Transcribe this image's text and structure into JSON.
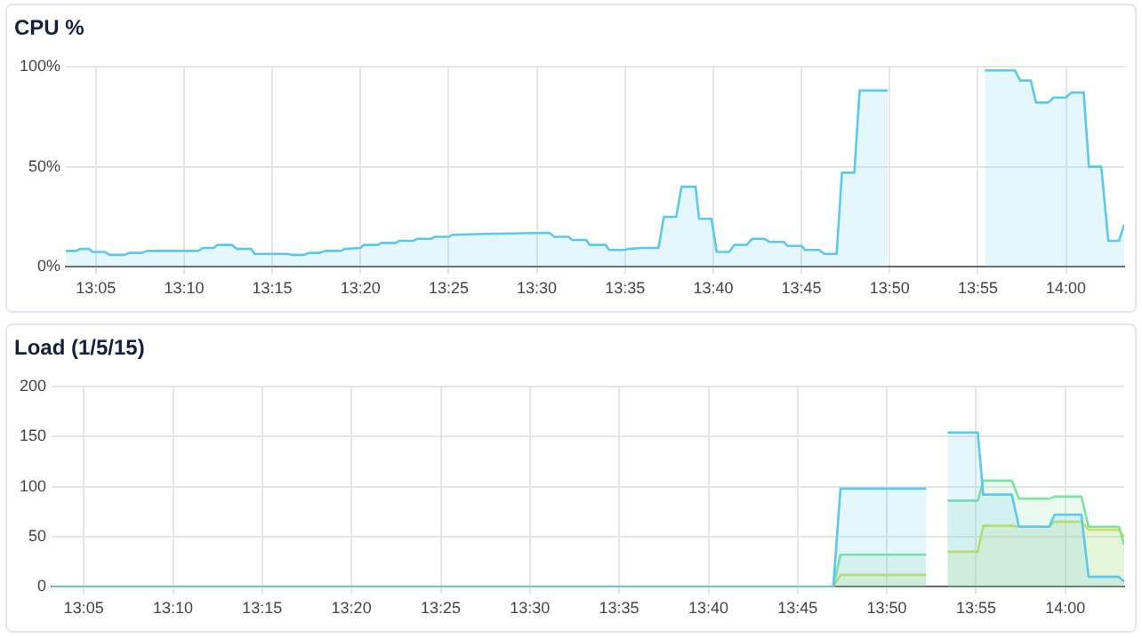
{
  "chart_data": [
    {
      "type": "area",
      "title": "CPU %",
      "x": [
        13.055,
        13.065,
        13.0683,
        13.0767,
        13.08,
        13.0917,
        13.0967,
        13.11,
        13.115,
        13.1267,
        13.1317,
        13.18,
        13.185,
        13.195,
        13.1983,
        13.2117,
        13.2167,
        13.23,
        13.2333,
        13.265,
        13.2683,
        13.28,
        13.285,
        13.295,
        13.3,
        13.315,
        13.3183,
        13.3333,
        13.3367,
        13.35,
        13.3533,
        13.3667,
        13.37,
        13.3833,
        13.3867,
        13.4,
        13.4033,
        13.4167,
        13.42,
        13.45,
        13.5117,
        13.5167,
        13.53,
        13.5333,
        13.5467,
        13.55,
        13.565,
        13.5683,
        13.5833,
        13.5867,
        13.6,
        13.615,
        13.62,
        13.6317,
        13.6367,
        13.65,
        13.6533,
        13.665,
        13.67,
        13.6817,
        13.6867,
        13.6983,
        13.7033,
        13.715,
        13.72,
        13.7333,
        13.7367,
        13.75,
        13.7533,
        13.7667,
        13.7717,
        13.7833,
        13.7883,
        13.8,
        13.805,
        13.8317,
        13.8667,
        13.9233,
        13.9517,
        13.9567,
        13.9667,
        13.9717,
        13.9833,
        13.9883,
        14.0,
        14.005,
        14.0167,
        14.0217,
        14.0333,
        14.04,
        14.05,
        14.055
      ],
      "series": [
        {
          "color": "#5bc8f0",
          "values": [
            8,
            8,
            9,
            9,
            7.5,
            7.5,
            6,
            6,
            7,
            7,
            8,
            8,
            9.5,
            9.5,
            11,
            11,
            9,
            9,
            6.5,
            6.5,
            6,
            6,
            7,
            7,
            8,
            8,
            9,
            9.5,
            11,
            11,
            12,
            12,
            13,
            13,
            14,
            14,
            15,
            15,
            16,
            16.5,
            17,
            15,
            15,
            13.5,
            13.5,
            11,
            11,
            8.5,
            8.5,
            9,
            9.5,
            9.5,
            25,
            25,
            40,
            40,
            24,
            24,
            7.5,
            7.5,
            11,
            11,
            14,
            14,
            12.5,
            12.5,
            10.5,
            10.5,
            8.5,
            8.5,
            6.5,
            6.5,
            47,
            47,
            88,
            88,
            null,
            98,
            98,
            93,
            93,
            82,
            82,
            84.5,
            84.5,
            87,
            87,
            50,
            50,
            13,
            13,
            21
          ]
        }
      ],
      "xlim": [
        13.055,
        14.055
      ],
      "xticks": [
        {
          "value": 13.0833,
          "label": "13:05"
        },
        {
          "value": 13.1667,
          "label": "13:10"
        },
        {
          "value": 13.25,
          "label": "13:15"
        },
        {
          "value": 13.3333,
          "label": "13:20"
        },
        {
          "value": 13.4167,
          "label": "13:25"
        },
        {
          "value": 13.5,
          "label": "13:30"
        },
        {
          "value": 13.5833,
          "label": "13:35"
        },
        {
          "value": 13.6667,
          "label": "13:40"
        },
        {
          "value": 13.75,
          "label": "13:45"
        },
        {
          "value": 13.8333,
          "label": "13:50"
        },
        {
          "value": 13.9167,
          "label": "13:55"
        },
        {
          "value": 14,
          "label": "14:00"
        }
      ],
      "ylim": [
        0,
        100
      ],
      "yticks": [
        {
          "value": 0,
          "label": "0%"
        },
        {
          "value": 50,
          "label": "50%"
        },
        {
          "value": 100,
          "label": "100%"
        }
      ],
      "grid": true,
      "legend": false,
      "marker": "none"
    },
    {
      "type": "area",
      "title": "Load (1/5/15)",
      "x": [
        13.0533,
        13.7833,
        13.79,
        13.87,
        13.88,
        13.89,
        13.9183,
        13.9233,
        13.95,
        13.9567,
        13.985,
        13.99,
        14.015,
        14.0217,
        14.05,
        14.055
      ],
      "series": [
        {
          "color": "#5bc8f0",
          "values": [
            0,
            0,
            98,
            98,
            null,
            154,
            154,
            92,
            92,
            60,
            60,
            72,
            72,
            10,
            10,
            5
          ]
        },
        {
          "color": "#7de3a0",
          "values": [
            0,
            0,
            32,
            32,
            null,
            86,
            86,
            106,
            106,
            88,
            88,
            90,
            90,
            60,
            60,
            42
          ]
        },
        {
          "color": "#d8e04a",
          "values": [
            0,
            0,
            12,
            12,
            null,
            35,
            35,
            61,
            61,
            60,
            60,
            65,
            65,
            57,
            57,
            50
          ]
        }
      ],
      "xlim": [
        13.0533,
        14.055
      ],
      "xticks": [
        {
          "value": 13.0833,
          "label": "13:05"
        },
        {
          "value": 13.1667,
          "label": "13:10"
        },
        {
          "value": 13.25,
          "label": "13:15"
        },
        {
          "value": 13.3333,
          "label": "13:20"
        },
        {
          "value": 13.4167,
          "label": "13:25"
        },
        {
          "value": 13.5,
          "label": "13:30"
        },
        {
          "value": 13.5833,
          "label": "13:35"
        },
        {
          "value": 13.6667,
          "label": "13:40"
        },
        {
          "value": 13.75,
          "label": "13:45"
        },
        {
          "value": 13.8333,
          "label": "13:50"
        },
        {
          "value": 13.9167,
          "label": "13:55"
        },
        {
          "value": 14,
          "label": "14:00"
        }
      ],
      "ylim": [
        0,
        200
      ],
      "yticks": [
        0,
        50,
        100,
        150,
        200
      ],
      "grid": true,
      "legend": false,
      "marker": "none"
    }
  ]
}
